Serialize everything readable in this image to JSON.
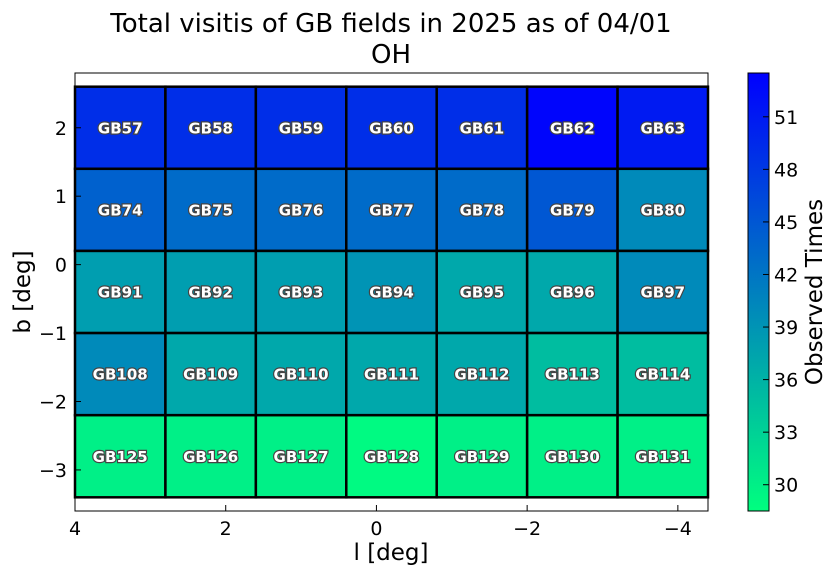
{
  "chart_data": {
    "type": "heatmap",
    "title": "Total visitis of GB fields in 2025 as of 04/01",
    "subtitle": "OH",
    "xlabel": "l [deg]",
    "ylabel": "b [deg]",
    "xlim": [
      4.0,
      -4.4
    ],
    "ylim": [
      -3.6,
      2.8
    ],
    "xticks": [
      4,
      2,
      0,
      -2,
      -4
    ],
    "xtick_labels": [
      "4",
      "2",
      "0",
      "−2",
      "−4"
    ],
    "yticks": [
      2,
      1,
      0,
      -1,
      -2,
      -3
    ],
    "ytick_labels": [
      "2",
      "1",
      "0",
      "−1",
      "−2",
      "−3"
    ],
    "grid": false,
    "colormap": "winter_r",
    "colorbar": {
      "label": "Observed Times",
      "range": [
        28.5,
        53.5
      ],
      "ticks": [
        30,
        33,
        36,
        39,
        42,
        45,
        48,
        51
      ],
      "tick_labels": [
        "30",
        "33",
        "36",
        "39",
        "42",
        "45",
        "48",
        "51"
      ],
      "color_low": "#00ff7f",
      "color_high": "#0000ff"
    },
    "cell_size": [
      1.2,
      1.2
    ],
    "columns_l": [
      3.4,
      2.2,
      1.0,
      -0.2,
      -1.4,
      -2.6,
      -3.8
    ],
    "rows": [
      {
        "b": 2.0,
        "fields": [
          "GB57",
          "GB58",
          "GB59",
          "GB60",
          "GB61",
          "GB62",
          "GB63"
        ],
        "values": [
          49,
          49,
          49,
          49,
          49,
          53,
          51
        ]
      },
      {
        "b": 0.8,
        "fields": [
          "GB74",
          "GB75",
          "GB76",
          "GB77",
          "GB78",
          "GB79",
          "GB80"
        ],
        "values": [
          44,
          43,
          43,
          43,
          43,
          45,
          40
        ]
      },
      {
        "b": -0.4,
        "fields": [
          "GB91",
          "GB92",
          "GB93",
          "GB94",
          "GB95",
          "GB96",
          "GB97"
        ],
        "values": [
          38,
          38,
          38,
          39,
          37,
          37,
          40
        ]
      },
      {
        "b": -1.6,
        "fields": [
          "GB108",
          "GB109",
          "GB110",
          "GB111",
          "GB112",
          "GB113",
          "GB114"
        ],
        "values": [
          40,
          37,
          37,
          37,
          37,
          35,
          35
        ]
      },
      {
        "b": -2.8,
        "fields": [
          "GB125",
          "GB126",
          "GB127",
          "GB128",
          "GB129",
          "GB130",
          "GB131"
        ],
        "values": [
          30,
          30,
          30,
          29,
          30,
          30,
          30
        ]
      }
    ]
  }
}
